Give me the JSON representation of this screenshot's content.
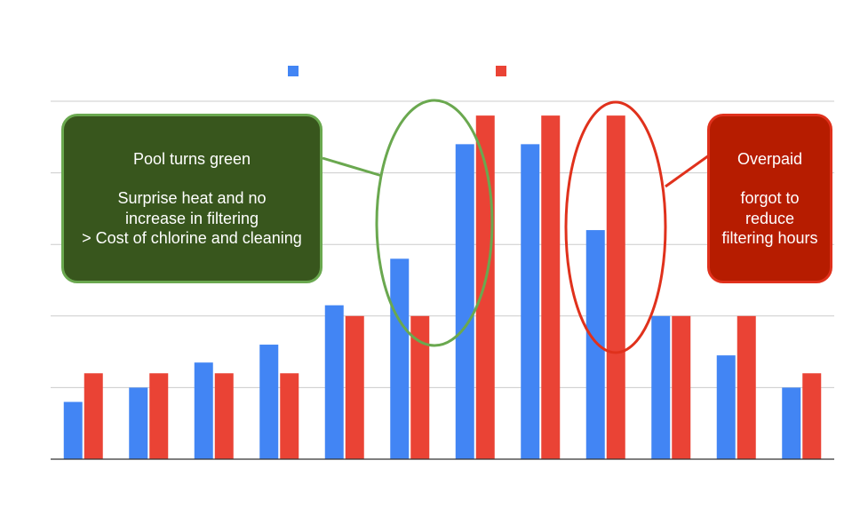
{
  "chart_data": {
    "type": "bar",
    "title": "",
    "xlabel": "",
    "ylabel": "",
    "categories": [
      "",
      "",
      "",
      "",
      "",
      "",
      "",
      "",
      "",
      "",
      "",
      ""
    ],
    "ylim": [
      0,
      5
    ],
    "grid": true,
    "legend_position": "top",
    "series": [
      {
        "color": "#4285f4",
        "values": [
          0.8,
          1.0,
          1.35,
          1.6,
          2.15,
          2.8,
          4.4,
          4.4,
          3.2,
          2.0,
          1.45,
          1.0
        ]
      },
      {
        "color": "#ea4335",
        "values": [
          1.2,
          1.2,
          1.2,
          1.2,
          2.0,
          2.0,
          4.8,
          4.8,
          4.8,
          2.0,
          2.0,
          1.2
        ]
      }
    ]
  },
  "annotations": {
    "green": {
      "title": "Pool turns green",
      "lines": [
        "Surprise heat and no",
        "increase in filtering",
        "> Cost of chlorine and cleaning"
      ],
      "border_color": "#6aa84f",
      "fill_color": "#38561d"
    },
    "red": {
      "title": "Overpaid",
      "lines": [
        "forgot to",
        "reduce",
        "filtering hours"
      ],
      "border_color": "#e0311c",
      "fill_color": "#b61c00"
    }
  }
}
